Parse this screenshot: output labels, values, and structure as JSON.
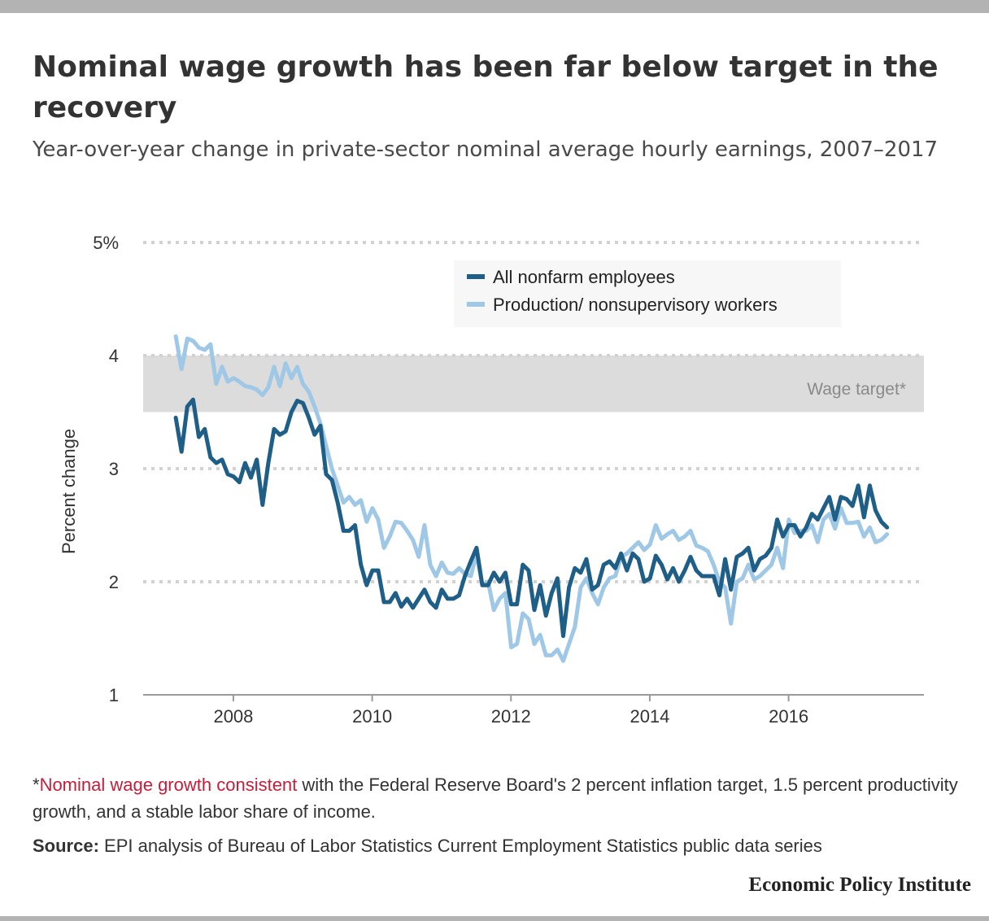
{
  "header": {
    "title": "Nominal wage growth has been far below target in the recovery",
    "subtitle": "Year-over-year change in private-sector nominal average hourly earnings, 2007–2017"
  },
  "footer": {
    "note_mark": "*",
    "note_highlight": "Nominal wage growth consistent",
    "note_rest": " with the Federal Reserve Board's 2 percent inflation target, 1.5 percent productivity growth, and a stable labor share of income.",
    "source_label": "Source:",
    "source_text": " EPI analysis of Bureau of Labor Statistics Current Employment Statistics public data series",
    "brand": "Economic Policy Institute"
  },
  "colors": {
    "accent_red": "#c41e3a",
    "all_nonfarm": "#1f5f87",
    "production": "#9fc7e6",
    "target_band": "#dcdcdc"
  },
  "chart_data": {
    "type": "line",
    "title": "Nominal wage growth has been far below target in the recovery",
    "subtitle": "Year-over-year change in private-sector nominal average hourly earnings, 2007–2017",
    "ylabel": "Percent change",
    "xlabel": "",
    "xlim": [
      2006.7,
      2017.95
    ],
    "ylim": [
      1,
      5
    ],
    "x_ticks": [
      2008,
      2010,
      2012,
      2014,
      2016
    ],
    "x_tick_labels": [
      "2008",
      "2010",
      "2012",
      "2014",
      "2016"
    ],
    "y_ticks": [
      1,
      2,
      3,
      4,
      5
    ],
    "y_tick_labels": [
      "1",
      "2",
      "3",
      "4",
      "5%"
    ],
    "grid": "horizontal dotted",
    "legend_position": "top-center",
    "band": {
      "label": "Wage target*",
      "from": 3.5,
      "to": 4.0
    },
    "x_start": 2007.17,
    "x_step": 0.08333,
    "series": [
      {
        "name": "All nonfarm employees",
        "values": [
          3.45,
          3.15,
          3.55,
          3.61,
          3.28,
          3.35,
          3.1,
          3.05,
          3.08,
          2.95,
          2.93,
          2.88,
          3.05,
          2.92,
          3.08,
          2.68,
          3.05,
          3.35,
          3.3,
          3.33,
          3.5,
          3.6,
          3.58,
          3.45,
          3.3,
          3.38,
          2.95,
          2.9,
          2.7,
          2.45,
          2.45,
          2.5,
          2.15,
          1.97,
          2.1,
          2.1,
          1.82,
          1.82,
          1.9,
          1.78,
          1.85,
          1.77,
          1.85,
          1.93,
          1.82,
          1.77,
          1.93,
          1.85,
          1.85,
          1.88,
          2.05,
          2.18,
          2.3,
          1.97,
          1.97,
          2.08,
          2.0,
          2.08,
          1.8,
          1.8,
          2.15,
          2.1,
          1.75,
          1.97,
          1.7,
          1.9,
          2.03,
          1.52,
          1.95,
          2.12,
          2.08,
          2.2,
          1.93,
          1.97,
          2.15,
          2.18,
          2.12,
          2.25,
          2.1,
          2.25,
          2.2,
          2.0,
          2.03,
          2.23,
          2.15,
          2.02,
          2.12,
          2.0,
          2.1,
          2.22,
          2.1,
          2.05,
          2.05,
          2.05,
          1.88,
          2.2,
          1.93,
          2.22,
          2.25,
          2.3,
          2.1,
          2.2,
          2.23,
          2.3,
          2.55,
          2.4,
          2.5,
          2.5,
          2.4,
          2.48,
          2.6,
          2.55,
          2.65,
          2.75,
          2.55,
          2.75,
          2.73,
          2.67,
          2.85,
          2.57,
          2.85,
          2.63,
          2.53,
          2.48
        ]
      },
      {
        "name": "Production/ nonsupervisory workers",
        "values": [
          4.17,
          3.88,
          4.15,
          4.13,
          4.07,
          4.05,
          4.1,
          3.75,
          3.9,
          3.77,
          3.8,
          3.77,
          3.73,
          3.72,
          3.7,
          3.65,
          3.72,
          3.9,
          3.73,
          3.93,
          3.8,
          3.9,
          3.75,
          3.68,
          3.55,
          3.4,
          3.2,
          3.0,
          2.85,
          2.7,
          2.75,
          2.68,
          2.72,
          2.53,
          2.65,
          2.55,
          2.3,
          2.4,
          2.53,
          2.52,
          2.45,
          2.37,
          2.22,
          2.5,
          2.15,
          2.05,
          2.17,
          2.08,
          2.07,
          2.12,
          2.07,
          2.05,
          2.25,
          1.97,
          2.0,
          1.75,
          1.85,
          1.9,
          1.42,
          1.45,
          1.72,
          1.67,
          1.45,
          1.53,
          1.35,
          1.35,
          1.4,
          1.3,
          1.45,
          1.6,
          1.95,
          2.03,
          1.9,
          1.8,
          1.95,
          2.03,
          2.05,
          2.22,
          2.25,
          2.3,
          2.35,
          2.28,
          2.33,
          2.5,
          2.38,
          2.42,
          2.45,
          2.37,
          2.4,
          2.45,
          2.32,
          2.3,
          2.27,
          2.15,
          2.0,
          1.95,
          1.63,
          2.0,
          2.03,
          2.15,
          2.02,
          2.05,
          2.1,
          2.15,
          2.3,
          2.12,
          2.55,
          2.43,
          2.45,
          2.45,
          2.5,
          2.35,
          2.55,
          2.6,
          2.47,
          2.65,
          2.52,
          2.52,
          2.53,
          2.4,
          2.48,
          2.35,
          2.37,
          2.42
        ]
      }
    ]
  }
}
